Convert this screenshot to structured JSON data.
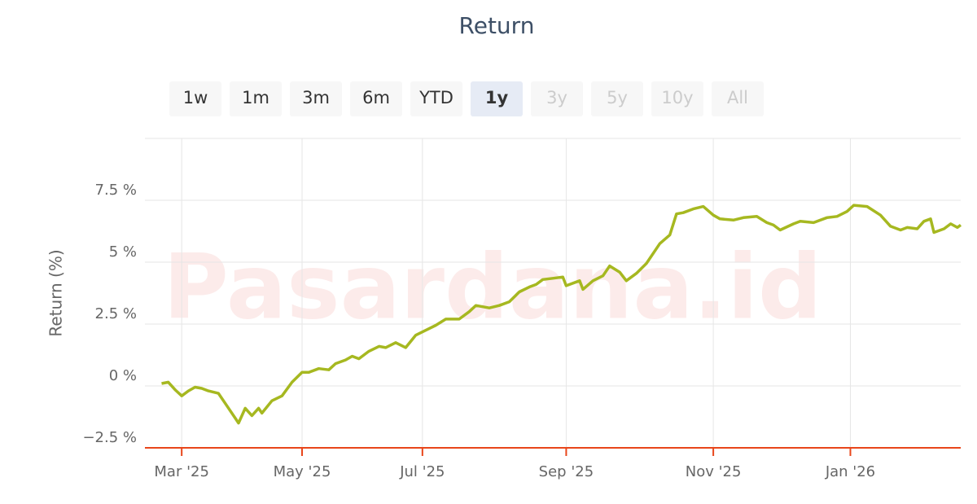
{
  "chart_data": {
    "type": "line",
    "title": "Return",
    "y_axis_label": "Return (%)",
    "watermark": "Pasardana.id",
    "range_selector": {
      "buttons": [
        "1w",
        "1m",
        "3m",
        "6m",
        "YTD",
        "1y",
        "3y",
        "5y",
        "10y",
        "All"
      ],
      "enabled": [
        true,
        true,
        true,
        true,
        true,
        true,
        false,
        false,
        false,
        false
      ],
      "selected": 5
    },
    "x": [
      5,
      7,
      9,
      11,
      13,
      15,
      17,
      19,
      22,
      24,
      27,
      28,
      30,
      32,
      34,
      35,
      38,
      41,
      44,
      47,
      49,
      52,
      55,
      57,
      60,
      62,
      64,
      67,
      70,
      72,
      75,
      78,
      81,
      84,
      87,
      90,
      94,
      97,
      99,
      103,
      106,
      109,
      112,
      115,
      117,
      119,
      122,
      125,
      126,
      130,
      131,
      134,
      137,
      139,
      142,
      144,
      147,
      150,
      154,
      157,
      159,
      161,
      164,
      167,
      170,
      172,
      176,
      179,
      183,
      186,
      188,
      190,
      194,
      196,
      200,
      204,
      207,
      210,
      212,
      216,
      220,
      223,
      226,
      228,
      231,
      233,
      235,
      236,
      239,
      241,
      243,
      244
    ],
    "series": [
      {
        "name": "Return",
        "color": "#a6b820",
        "values": [
          0.1,
          0.15,
          -0.15,
          -0.4,
          -0.2,
          -0.05,
          -0.1,
          -0.2,
          -0.3,
          -0.7,
          -1.3,
          -1.5,
          -0.9,
          -1.2,
          -0.9,
          -1.1,
          -0.6,
          -0.4,
          0.15,
          0.55,
          0.55,
          0.7,
          0.65,
          0.9,
          1.05,
          1.2,
          1.1,
          1.4,
          1.6,
          1.55,
          1.75,
          1.55,
          2.05,
          2.25,
          2.45,
          2.7,
          2.7,
          3.0,
          3.25,
          3.15,
          3.25,
          3.4,
          3.8,
          4.0,
          4.1,
          4.3,
          4.35,
          4.4,
          4.05,
          4.25,
          3.9,
          4.25,
          4.45,
          4.85,
          4.6,
          4.25,
          4.55,
          4.95,
          5.75,
          6.1,
          6.95,
          7.0,
          7.15,
          7.25,
          6.9,
          6.75,
          6.7,
          6.8,
          6.85,
          6.6,
          6.5,
          6.3,
          6.55,
          6.65,
          6.6,
          6.8,
          6.85,
          7.05,
          7.3,
          7.25,
          6.9,
          6.45,
          6.3,
          6.4,
          6.35,
          6.65,
          6.75,
          6.2,
          6.35,
          6.55,
          6.4,
          6.5
        ]
      }
    ],
    "xlim": [
      0,
      244
    ],
    "xticks": [
      {
        "value": 11,
        "label": "Mar '25"
      },
      {
        "value": 47,
        "label": "May '25"
      },
      {
        "value": 83,
        "label": "Jul '25"
      },
      {
        "value": 126,
        "label": "Sep '25"
      },
      {
        "value": 170,
        "label": "Nov '25"
      },
      {
        "value": 211,
        "label": "Jan '26"
      }
    ],
    "ylim": [
      -2.5,
      10
    ],
    "yticks": [
      {
        "value": -2.5,
        "label": "−2.5 %"
      },
      {
        "value": 0,
        "label": "0 %"
      },
      {
        "value": 2.5,
        "label": "2.5 %"
      },
      {
        "value": 5,
        "label": "5 %"
      },
      {
        "value": 7.5,
        "label": "7.5 %"
      }
    ],
    "grid": true
  }
}
